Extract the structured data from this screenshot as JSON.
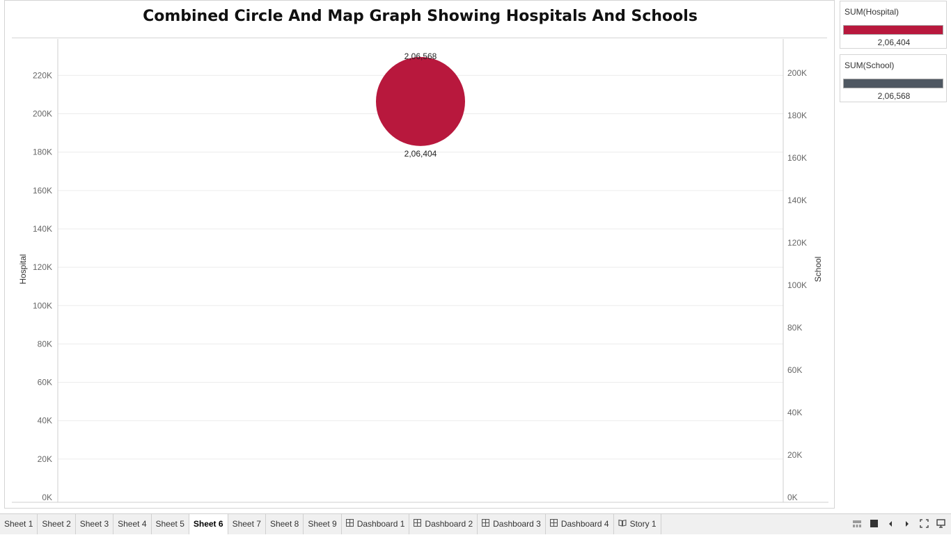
{
  "chart_data": {
    "type": "scatter",
    "title": "Combined Circle And Map Graph Showing Hospitals And Schools",
    "y_left": {
      "label": "Hospital",
      "ticks": [
        "0K",
        "20K",
        "40K",
        "60K",
        "80K",
        "100K",
        "120K",
        "140K",
        "160K",
        "180K",
        "200K",
        "220K"
      ],
      "range": [
        0,
        239000
      ]
    },
    "y_right": {
      "label": "School",
      "ticks": [
        "0K",
        "20K",
        "40K",
        "60K",
        "80K",
        "100K",
        "120K",
        "140K",
        "160K",
        "180K",
        "200K"
      ],
      "range": [
        0,
        216000
      ]
    },
    "grid": true,
    "series": [
      {
        "name": "SUM(Hospital)",
        "value": 206404,
        "label": "2,06,404",
        "color": "#b8183d"
      },
      {
        "name": "SUM(School)",
        "value": 206568,
        "label": "2,06,568",
        "color": "#4f5862"
      }
    ]
  },
  "legends": [
    {
      "title": "SUM(Hospital)",
      "value": "2,06,404",
      "color": "#b8183d"
    },
    {
      "title": "SUM(School)",
      "value": "2,06,568",
      "color": "#4f5862"
    }
  ],
  "tabs": [
    {
      "label": "Sheet 1",
      "icon": ""
    },
    {
      "label": "Sheet 2",
      "icon": ""
    },
    {
      "label": "Sheet 3",
      "icon": ""
    },
    {
      "label": "Sheet 4",
      "icon": ""
    },
    {
      "label": "Sheet 5",
      "icon": ""
    },
    {
      "label": "Sheet 6",
      "icon": "",
      "active": true
    },
    {
      "label": "Sheet 7",
      "icon": ""
    },
    {
      "label": "Sheet 8",
      "icon": ""
    },
    {
      "label": "Sheet 9",
      "icon": ""
    },
    {
      "label": "Dashboard 1",
      "icon": "dashboard-icon"
    },
    {
      "label": "Dashboard 2",
      "icon": "dashboard-icon"
    },
    {
      "label": "Dashboard 3",
      "icon": "dashboard-icon"
    },
    {
      "label": "Dashboard 4",
      "icon": "dashboard-icon"
    },
    {
      "label": "Story 1",
      "icon": "story-icon"
    }
  ],
  "controls": [
    "show-filmstrip-icon",
    "show-tabs-icon",
    "previous-sheet-icon",
    "next-sheet-icon",
    "fullscreen-icon",
    "presentation-mode-icon"
  ]
}
